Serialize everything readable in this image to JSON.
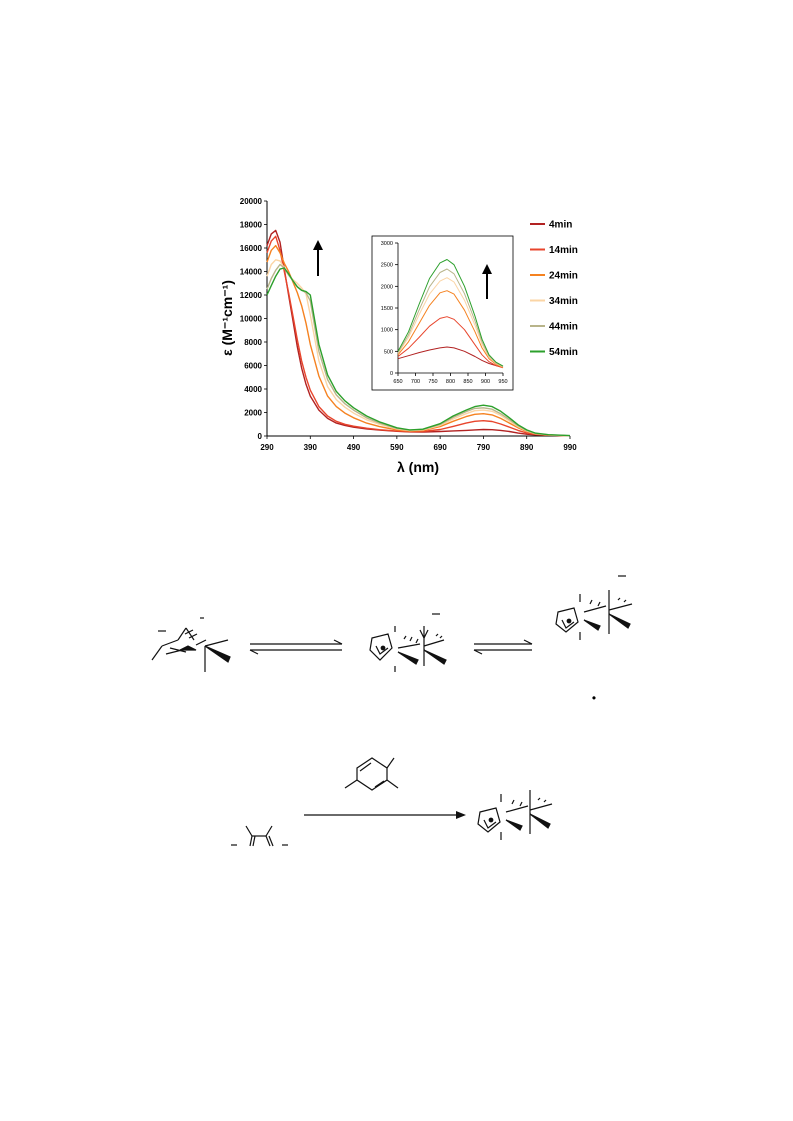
{
  "chart_data": [
    {
      "type": "line",
      "xlabel": "λ (nm)",
      "ylabel": "ε (M⁻¹cm⁻¹)",
      "xlim": [
        290,
        990
      ],
      "ylim": [
        0,
        20000
      ],
      "x_ticks": [
        "290",
        "390",
        "490",
        "590",
        "690",
        "790",
        "890",
        "990"
      ],
      "y_ticks": [
        "0",
        "2000",
        "4000",
        "6000",
        "8000",
        "10000",
        "12000",
        "14000",
        "16000",
        "18000",
        "20000"
      ],
      "grid": false,
      "legend_position": "right",
      "annotation": "↑",
      "series": [
        {
          "name": "4min",
          "color": "#b22222",
          "x": [
            290,
            300,
            310,
            320,
            330,
            340,
            350,
            360,
            370,
            380,
            390,
            410,
            430,
            450,
            470,
            490,
            520,
            550,
            590,
            620,
            650,
            690,
            720,
            750,
            770,
            790,
            810,
            830,
            850,
            870,
            890,
            910,
            940,
            990
          ],
          "values": [
            16200,
            17200,
            17500,
            16500,
            14200,
            12000,
            9800,
            7600,
            5800,
            4400,
            3400,
            2200,
            1500,
            1100,
            900,
            750,
            600,
            500,
            400,
            350,
            330,
            380,
            430,
            480,
            520,
            550,
            540,
            480,
            380,
            250,
            150,
            100,
            60,
            20
          ]
        },
        {
          "name": "14min",
          "color": "#e8452c",
          "x": [
            290,
            300,
            310,
            320,
            330,
            340,
            350,
            360,
            370,
            380,
            390,
            410,
            430,
            450,
            470,
            490,
            520,
            550,
            590,
            620,
            650,
            690,
            720,
            750,
            770,
            790,
            810,
            830,
            850,
            870,
            890,
            910,
            940,
            990
          ],
          "values": [
            15600,
            16600,
            17000,
            15800,
            14000,
            12200,
            10200,
            8200,
            6400,
            5000,
            3900,
            2500,
            1700,
            1250,
            1000,
            830,
            660,
            540,
            420,
            370,
            380,
            550,
            820,
            1100,
            1250,
            1300,
            1230,
            1020,
            760,
            480,
            260,
            140,
            70,
            20
          ]
        },
        {
          "name": "24min",
          "color": "#f58220",
          "x": [
            290,
            300,
            310,
            320,
            330,
            340,
            350,
            360,
            370,
            380,
            390,
            410,
            430,
            450,
            470,
            490,
            520,
            550,
            590,
            620,
            650,
            690,
            720,
            750,
            770,
            790,
            810,
            830,
            850,
            870,
            890,
            910,
            940,
            990
          ],
          "values": [
            14800,
            15800,
            16200,
            15600,
            14700,
            14000,
            13100,
            12200,
            11100,
            9600,
            7800,
            5100,
            3400,
            2500,
            1950,
            1550,
            1100,
            800,
            520,
            420,
            460,
            800,
            1250,
            1650,
            1850,
            1900,
            1800,
            1500,
            1100,
            700,
            380,
            180,
            80,
            20
          ]
        },
        {
          "name": "34min",
          "color": "#fbd5a5",
          "x": [
            290,
            300,
            310,
            320,
            330,
            340,
            350,
            360,
            370,
            380,
            390,
            410,
            430,
            450,
            470,
            490,
            520,
            550,
            590,
            620,
            650,
            690,
            720,
            750,
            770,
            790,
            810,
            830,
            850,
            870,
            890,
            910,
            940,
            990
          ],
          "values": [
            13600,
            14600,
            15000,
            14900,
            14300,
            13700,
            13300,
            13000,
            12600,
            12100,
            10300,
            6400,
            4200,
            3100,
            2450,
            1950,
            1380,
            1000,
            600,
            470,
            520,
            900,
            1450,
            1900,
            2150,
            2200,
            2100,
            1750,
            1280,
            800,
            430,
            200,
            90,
            20
          ]
        },
        {
          "name": "44min",
          "color": "#b8b48a",
          "x": [
            290,
            300,
            310,
            320,
            330,
            340,
            350,
            360,
            370,
            380,
            390,
            410,
            430,
            450,
            470,
            490,
            520,
            550,
            590,
            620,
            650,
            690,
            720,
            750,
            770,
            790,
            810,
            830,
            850,
            870,
            890,
            910,
            940,
            990
          ],
          "values": [
            12500,
            13400,
            14100,
            14600,
            14300,
            13700,
            13200,
            12700,
            12400,
            12200,
            11500,
            7200,
            4800,
            3500,
            2750,
            2200,
            1550,
            1100,
            650,
            500,
            550,
            980,
            1580,
            2080,
            2350,
            2400,
            2280,
            1900,
            1400,
            870,
            470,
            220,
            100,
            25
          ]
        },
        {
          "name": "54min",
          "color": "#2ca02c",
          "x": [
            290,
            300,
            310,
            320,
            330,
            340,
            350,
            360,
            370,
            380,
            390,
            410,
            430,
            450,
            470,
            490,
            520,
            550,
            590,
            620,
            650,
            690,
            720,
            750,
            770,
            790,
            810,
            830,
            850,
            870,
            890,
            910,
            940,
            990
          ],
          "values": [
            12000,
            12800,
            13600,
            14200,
            14300,
            13800,
            13200,
            12700,
            12400,
            12300,
            12000,
            7800,
            5200,
            3800,
            3000,
            2400,
            1700,
            1200,
            700,
            520,
            580,
            1050,
            1700,
            2200,
            2500,
            2620,
            2500,
            2100,
            1550,
            950,
            520,
            250,
            110,
            30
          ]
        }
      ]
    },
    {
      "type": "line",
      "xlim": [
        650,
        950
      ],
      "ylim": [
        0,
        3000
      ],
      "x_ticks": [
        "650",
        "700",
        "750",
        "800",
        "850",
        "900",
        "950"
      ],
      "y_ticks": [
        "0",
        "500",
        "1000",
        "1500",
        "2000",
        "2500",
        "3000"
      ],
      "annotation": "↑",
      "series": [
        {
          "name": "4min",
          "color": "#b22222",
          "x": [
            650,
            680,
            710,
            740,
            770,
            790,
            810,
            840,
            870,
            890,
            910,
            930,
            950
          ],
          "values": [
            330,
            400,
            470,
            530,
            580,
            600,
            580,
            500,
            380,
            290,
            220,
            170,
            130
          ]
        },
        {
          "name": "14min",
          "color": "#e8452c",
          "x": [
            650,
            680,
            710,
            740,
            770,
            790,
            810,
            840,
            870,
            890,
            910,
            930,
            950
          ],
          "values": [
            380,
            570,
            820,
            1080,
            1260,
            1300,
            1240,
            1000,
            650,
            420,
            260,
            170,
            120
          ]
        },
        {
          "name": "24min",
          "color": "#f58220",
          "x": [
            650,
            680,
            710,
            740,
            770,
            790,
            810,
            840,
            870,
            890,
            910,
            930,
            950
          ],
          "values": [
            420,
            720,
            1140,
            1560,
            1850,
            1900,
            1820,
            1450,
            950,
            580,
            330,
            200,
            130
          ]
        },
        {
          "name": "34min",
          "color": "#fbd5a5",
          "x": [
            650,
            680,
            710,
            740,
            770,
            790,
            810,
            840,
            870,
            890,
            910,
            930,
            950
          ],
          "values": [
            450,
            820,
            1340,
            1820,
            2120,
            2200,
            2100,
            1680,
            1100,
            660,
            360,
            220,
            140
          ]
        },
        {
          "name": "44min",
          "color": "#b8b48a",
          "x": [
            650,
            680,
            710,
            740,
            770,
            790,
            810,
            840,
            870,
            890,
            910,
            930,
            950
          ],
          "values": [
            470,
            880,
            1450,
            1990,
            2320,
            2400,
            2290,
            1830,
            1200,
            720,
            390,
            230,
            150
          ]
        },
        {
          "name": "54min",
          "color": "#2ca02c",
          "x": [
            650,
            680,
            710,
            740,
            770,
            790,
            810,
            840,
            870,
            890,
            910,
            930,
            950
          ],
          "values": [
            500,
            950,
            1580,
            2180,
            2540,
            2620,
            2500,
            2000,
            1310,
            780,
            420,
            250,
            160
          ]
        }
      ]
    }
  ],
  "scheme": {
    "dot": "•"
  }
}
